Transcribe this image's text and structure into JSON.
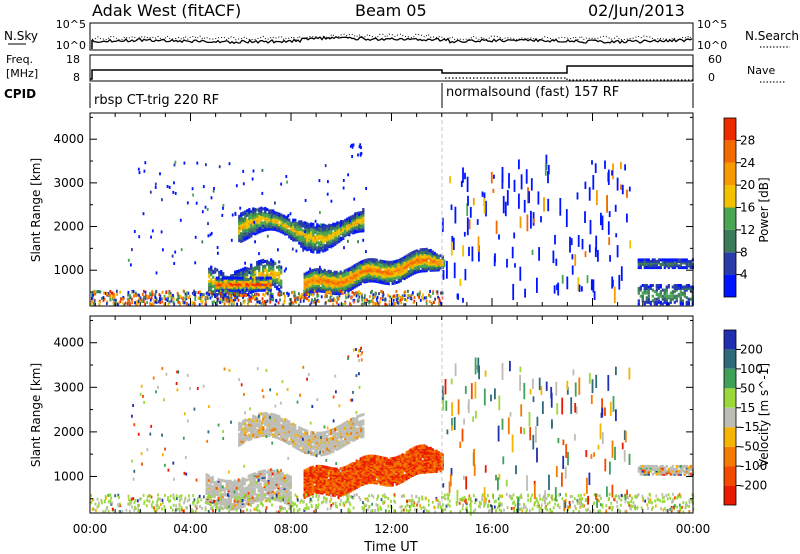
{
  "header": {
    "title": "Adak West (fitACF)",
    "beam": "Beam 05",
    "date": "02/Jun/2013"
  },
  "noise_panel": {
    "left_label": "N.Sky",
    "left_ticks": [
      "10^5",
      "10^0"
    ],
    "right_label": "N.Search",
    "right_ticks": [
      "10^5",
      "10^0"
    ]
  },
  "freq_panel": {
    "left_label_1": "Freq.",
    "left_label_2": "[MHz]",
    "left_ticks": [
      "18",
      "8"
    ],
    "right_label": "Nave",
    "right_ticks": [
      "60",
      "0"
    ]
  },
  "cpid": {
    "label": "CPID",
    "program_1": "rbsp CT-trig 220 RF",
    "program_2": "normalsound (fast) 157 RF"
  },
  "colors": {
    "power_scale": [
      "#0014ff",
      "#2a3ca8",
      "#3b7a5a",
      "#4aa652",
      "#f2c200",
      "#f79a00",
      "#f26a00",
      "#ee2b00"
    ],
    "velocity_scale": [
      "#1f2fb0",
      "#2f6a7a",
      "#3fa05a",
      "#9bd83a",
      "#bdbdb5",
      "#f5b400",
      "#f47a00",
      "#f24a00",
      "#e81a00"
    ],
    "gray": "#bdbdb5"
  },
  "chart_data": [
    {
      "type": "heatmap",
      "name": "power",
      "ylabel": "Slant Range [km]",
      "colorbar_label": "Power [dB]",
      "colorbar_ticks": [
        "4",
        "8",
        "12",
        "16",
        "20",
        "24",
        "28"
      ],
      "y_ticks": [
        "1000",
        "2000",
        "3000",
        "4000"
      ],
      "ylim": [
        180,
        4600
      ],
      "x_ticks": [
        "00:00",
        "04:00",
        "08:00",
        "12:00",
        "16:00",
        "20:00",
        "00:00"
      ],
      "xlim_hours": [
        0,
        24
      ]
    },
    {
      "type": "heatmap",
      "name": "velocity",
      "ylabel": "Slant Range [km]",
      "colorbar_label": "Velocity [m s^-1]",
      "colorbar_ticks": [
        "200",
        "100",
        "50",
        "15",
        "-15",
        "-50",
        "-100",
        "-200"
      ],
      "y_ticks": [
        "1000",
        "2000",
        "3000",
        "4000"
      ],
      "ylim": [
        180,
        4600
      ],
      "x_ticks": [
        "00:00",
        "04:00",
        "08:00",
        "12:00",
        "16:00",
        "20:00",
        "00:00"
      ],
      "xlim_hours": [
        0,
        24
      ],
      "xlabel": "Time UT"
    }
  ]
}
